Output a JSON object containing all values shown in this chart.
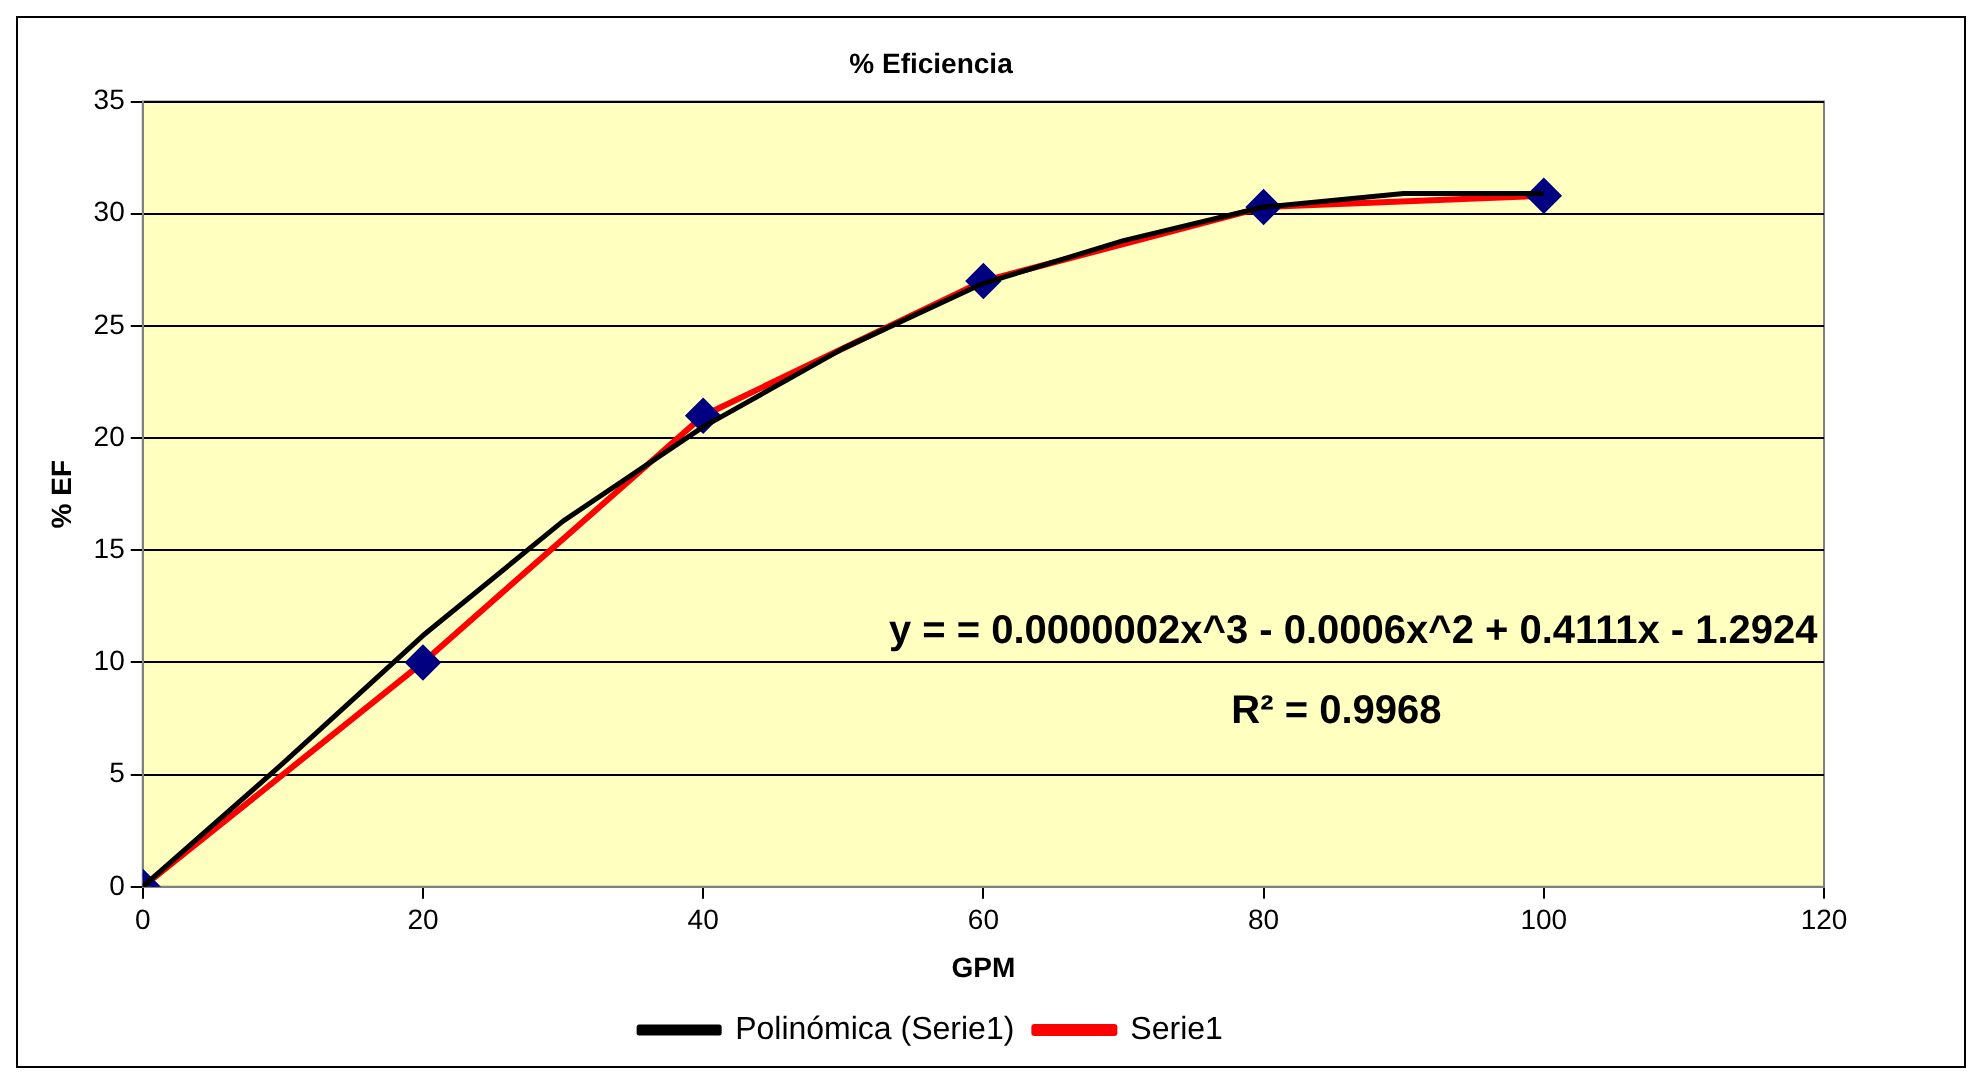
{
  "chart_data": {
    "type": "line",
    "title": "% Eficiencia",
    "xlabel": "GPM",
    "ylabel": "% EF",
    "xlim": [
      0,
      120
    ],
    "xticks": [
      0,
      20,
      40,
      60,
      80,
      100,
      120
    ],
    "ylim": [
      0,
      35
    ],
    "yticks": [
      0,
      5,
      10,
      15,
      20,
      25,
      30,
      35
    ],
    "grid": "y",
    "legend": "bottom",
    "marker": "diamond",
    "line_style": "solid",
    "series": [
      {
        "name": "Serie1",
        "color": "#ff0000",
        "x": [
          0,
          20,
          40,
          60,
          80,
          100
        ],
        "values": [
          0,
          10,
          21,
          27,
          30.3,
          30.8
        ]
      },
      {
        "name": "Polinómica (Serie1)",
        "type": "line",
        "marker": "none",
        "color": "#000000",
        "x": [
          0,
          10,
          20,
          30,
          40,
          50,
          60,
          70,
          80,
          90,
          100
        ],
        "values": [
          0,
          5.5,
          11.2,
          16.3,
          20.5,
          24,
          26.9,
          28.8,
          30.3,
          30.9,
          30.9
        ]
      }
    ],
    "annotations": [
      "y = = 0.0000002x^3 - 0.0006x^2 + 0.4111x - 1.2924",
      "R² = 0.9968"
    ]
  }
}
